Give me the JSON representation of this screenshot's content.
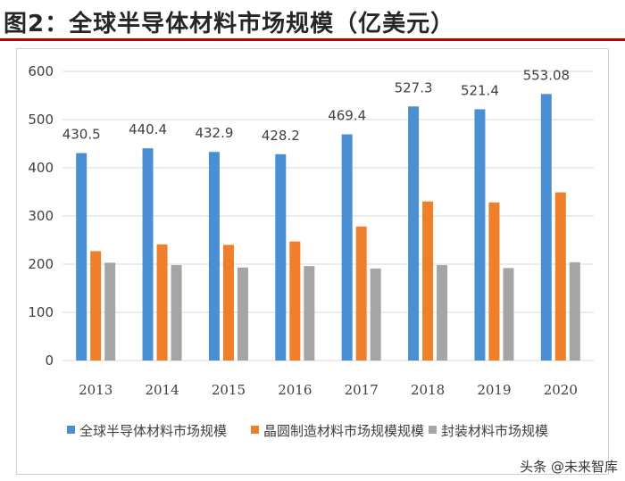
{
  "header": {
    "title": "图2：全球半导体材料市场规模（亿美元）"
  },
  "colors": {
    "series1": "#4a8fd4",
    "series2": "#f07f2c",
    "series3": "#a5a5a5",
    "title_rule": "#c00000",
    "grid": "#d9d9d9",
    "text": "#404040"
  },
  "chart_data": {
    "type": "bar",
    "title": "全球半导体材料市场规模（亿美元）",
    "categories": [
      "2013",
      "2014",
      "2015",
      "2016",
      "2017",
      "2018",
      "2019",
      "2020"
    ],
    "series": [
      {
        "name": "全球半导体材料市场规模",
        "values": [
          430.5,
          440.4,
          432.9,
          428.2,
          469.4,
          527.3,
          521.4,
          553.08
        ]
      },
      {
        "name": "晶圆制造材料市场规模规模",
        "values": [
          227,
          241,
          240,
          247,
          278,
          330,
          328,
          349
        ]
      },
      {
        "name": "封装材料市场规模",
        "values": [
          203,
          198,
          193,
          196,
          191,
          198,
          192,
          204
        ]
      }
    ],
    "data_labels": [
      "430.5",
      "440.4",
      "432.9",
      "428.2",
      "469.4",
      "527.3",
      "521.4",
      "553.08"
    ],
    "yticks": [
      "0",
      "100",
      "200",
      "300",
      "400",
      "500",
      "600"
    ],
    "ylim": [
      0,
      600
    ],
    "xlabel": "",
    "ylabel": "",
    "grid": true,
    "legend": "bottom"
  },
  "watermark": {
    "text": "头条 @未来智库"
  }
}
